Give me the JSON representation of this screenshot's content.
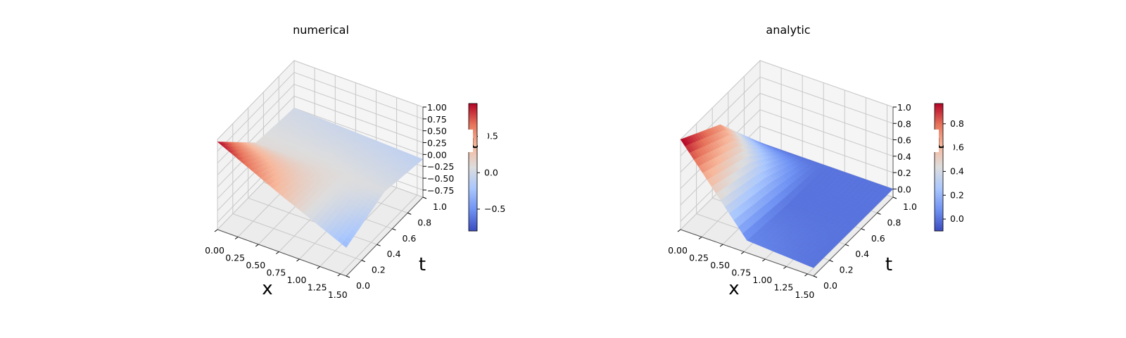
{
  "colormap": {
    "name": "coolwarm",
    "stops": [
      "#3b4cc0",
      "#6f92f3",
      "#aac7fd",
      "#dddddd",
      "#f7b89c",
      "#e7745b",
      "#b40426"
    ]
  },
  "chart_data": [
    {
      "type": "surface3d",
      "title": "numerical",
      "xlabel": "x",
      "ylabel": "t",
      "zlabel": "u",
      "xlim": [
        0,
        1.5708
      ],
      "ylim": [
        0,
        1
      ],
      "zlim": [
        -0.9,
        1.0
      ],
      "x_ticks": [
        "0.00",
        "0.25",
        "0.50",
        "0.75",
        "1.00",
        "1.25",
        "1.50"
      ],
      "y_ticks": [
        "0.0",
        "0.2",
        "0.4",
        "0.6",
        "0.8",
        "1.0"
      ],
      "z_ticks": [
        "−0.75",
        "−0.50",
        "−0.25",
        "0.00",
        "0.25",
        "0.50",
        "0.75",
        "1.00"
      ],
      "z_tick_values": [
        -0.75,
        -0.5,
        -0.25,
        0,
        0.25,
        0.5,
        0.75,
        1.0
      ],
      "colorbar": {
        "min": -0.8,
        "max": 0.95,
        "ticks": [
          "−0.5",
          "0.0",
          "0.5"
        ],
        "tick_values": [
          -0.5,
          0,
          0.5
        ]
      },
      "surface_samples": {
        "x": [
          0,
          0.785,
          1.571
        ],
        "t": [
          0,
          0.5,
          1
        ],
        "u": [
          [
            0.95,
            0.3,
            -0.3
          ],
          [
            0.1,
            0.1,
            0.05
          ],
          [
            0.0,
            -0.05,
            -0.1
          ]
        ]
      }
    },
    {
      "type": "surface3d",
      "title": "analytic",
      "xlabel": "x",
      "ylabel": "t",
      "zlabel": "u",
      "xlim": [
        0,
        1.5708
      ],
      "ylim": [
        0,
        1
      ],
      "zlim": [
        -0.1,
        1.0
      ],
      "x_ticks": [
        "0.00",
        "0.25",
        "0.50",
        "0.75",
        "1.00",
        "1.25",
        "1.50"
      ],
      "y_ticks": [
        "0.0",
        "0.2",
        "0.4",
        "0.6",
        "0.8",
        "1.0"
      ],
      "z_ticks": [
        "0.0",
        "0.2",
        "0.4",
        "0.6",
        "0.8",
        "1.0"
      ],
      "z_tick_values": [
        0,
        0.2,
        0.4,
        0.6,
        0.8,
        1.0
      ],
      "colorbar": {
        "min": -0.1,
        "max": 0.97,
        "ticks": [
          "0.0",
          "0.2",
          "0.4",
          "0.6",
          "0.8"
        ],
        "tick_values": [
          0,
          0.2,
          0.4,
          0.6,
          0.8
        ]
      },
      "surface_samples": {
        "x": [
          0,
          0.785,
          1.571
        ],
        "t": [
          0,
          0.5,
          1
        ],
        "u": [
          [
            1.0,
            0.05,
            0.0
          ],
          [
            0.7,
            0.0,
            0.0
          ],
          [
            0.0,
            0.0,
            0.0
          ]
        ]
      }
    }
  ]
}
